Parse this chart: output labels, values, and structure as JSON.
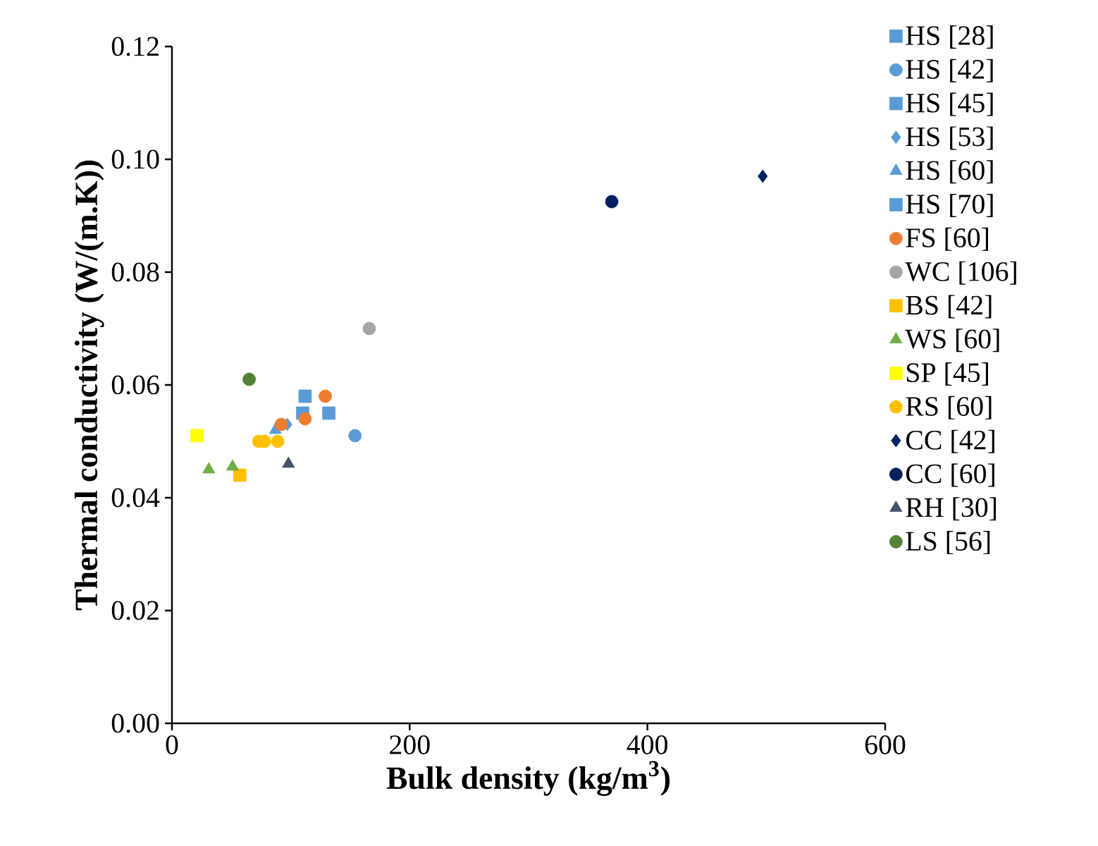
{
  "chart_data": {
    "type": "scatter",
    "xlabel": "Bulk density (kg/m$^{3}$)",
    "ylabel": "Thermal conductivity (W/(m.K))",
    "xlim": [
      0,
      600
    ],
    "ylim": [
      0,
      0.12
    ],
    "xticks": [
      0,
      200,
      400,
      600
    ],
    "yticks": [
      {
        "value": 0,
        "label": "0.00"
      },
      {
        "value": 0.02,
        "label": "0.02"
      },
      {
        "value": 0.04,
        "label": "0.04"
      },
      {
        "value": 0.06,
        "label": "0.06"
      },
      {
        "value": 0.08,
        "label": "0.08"
      },
      {
        "value": 0.1,
        "label": "0.10"
      },
      {
        "value": 0.12,
        "label": "0.12"
      }
    ],
    "grid": false,
    "legend": "right",
    "series": [
      {
        "name": "HS [28]",
        "color": "#5b9bd5",
        "marker": "square",
        "x": [
          132
        ],
        "values": [
          0.055
        ]
      },
      {
        "name": "HS [42]",
        "color": "#5b9bd5",
        "marker": "circle",
        "x": [
          154
        ],
        "values": [
          0.051
        ]
      },
      {
        "name": "HS [45]",
        "color": "#5b9bd5",
        "marker": "square",
        "x": [
          110
        ],
        "values": [
          0.055
        ]
      },
      {
        "name": "HS [53]",
        "color": "#5b9bd5",
        "marker": "diamond",
        "x": [
          97
        ],
        "values": [
          0.053
        ]
      },
      {
        "name": "HS [60]",
        "color": "#5b9bd5",
        "marker": "triangle",
        "x": [
          87
        ],
        "values": [
          0.052
        ]
      },
      {
        "name": "HS [70]",
        "color": "#5b9bd5",
        "marker": "square",
        "x": [
          112
        ],
        "values": [
          0.058
        ]
      },
      {
        "name": "FS [60]",
        "color": "#ed7d31",
        "marker": "circle",
        "x": [
          129,
          112,
          92
        ],
        "values": [
          0.058,
          0.054,
          0.053
        ]
      },
      {
        "name": "WC [106]",
        "color": "#a5a5a5",
        "marker": "circle",
        "x": [
          166
        ],
        "values": [
          0.07
        ]
      },
      {
        "name": "BS [42]",
        "color": "#ffc000",
        "marker": "square",
        "x": [
          57
        ],
        "values": [
          0.044
        ]
      },
      {
        "name": "WS [60]",
        "color": "#70ad47",
        "marker": "triangle",
        "x": [
          31,
          51
        ],
        "values": [
          0.045,
          0.0455
        ]
      },
      {
        "name": "SP [45]",
        "color": "#ffff00",
        "marker": "square",
        "x": [
          21
        ],
        "values": [
          0.051
        ]
      },
      {
        "name": "RS [60]",
        "color": "#ffc000",
        "marker": "circle",
        "x": [
          73,
          78,
          89
        ],
        "values": [
          0.05,
          0.05,
          0.05
        ]
      },
      {
        "name": "CC [42]",
        "color": "#002060",
        "marker": "diamond",
        "x": [
          497
        ],
        "values": [
          0.097
        ]
      },
      {
        "name": "CC [60]",
        "color": "#002060",
        "marker": "circle",
        "x": [
          370
        ],
        "values": [
          0.0925
        ]
      },
      {
        "name": "RH [30]",
        "color": "#44546a",
        "marker": "triangle",
        "x": [
          98
        ],
        "values": [
          0.046
        ]
      },
      {
        "name": "LS [56]",
        "color": "#548235",
        "marker": "circle",
        "x": [
          65
        ],
        "values": [
          0.061
        ]
      }
    ]
  }
}
